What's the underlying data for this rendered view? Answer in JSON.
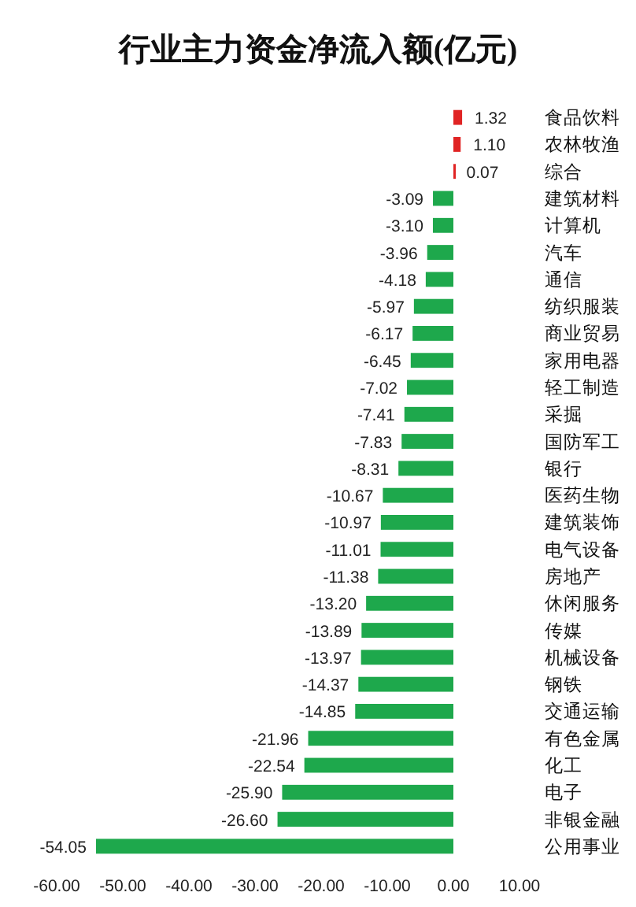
{
  "chart_data": {
    "type": "bar",
    "orientation": "horizontal",
    "title": "行业主力资金净流入额(亿元)",
    "categories": [
      "食品饮料",
      "农林牧渔",
      "综合",
      "建筑材料",
      "计算机",
      "汽车",
      "通信",
      "纺织服装",
      "商业贸易",
      "家用电器",
      "轻工制造",
      "采掘",
      "国防军工",
      "银行",
      "医药生物",
      "建筑装饰",
      "电气设备",
      "房地产",
      "休闲服务",
      "传媒",
      "机械设备",
      "钢铁",
      "交通运输",
      "有色金属",
      "化工",
      "电子",
      "非银金融",
      "公用事业"
    ],
    "values": [
      1.32,
      1.1,
      0.07,
      -3.09,
      -3.1,
      -3.96,
      -4.18,
      -5.97,
      -6.17,
      -6.45,
      -7.02,
      -7.41,
      -7.83,
      -8.31,
      -10.67,
      -10.97,
      -11.01,
      -11.38,
      -13.2,
      -13.89,
      -13.97,
      -14.37,
      -14.85,
      -21.96,
      -22.54,
      -25.9,
      -26.6,
      -54.05
    ],
    "value_labels": [
      "1.32",
      "1.10",
      "0.07",
      "-3.09",
      "-3.10",
      "-3.96",
      "-4.18",
      "-5.97",
      "-6.17",
      "-6.45",
      "-7.02",
      "-7.41",
      "-7.83",
      "-8.31",
      "-10.67",
      "-10.97",
      "-11.01",
      "-11.38",
      "-13.20",
      "-13.89",
      "-13.97",
      "-14.37",
      "-14.85",
      "-21.96",
      "-22.54",
      "-25.90",
      "-26.60",
      "-54.05"
    ],
    "colors": [
      "#e02424",
      "#e02424",
      "#e02424",
      "#1ea84c",
      "#1ea84c",
      "#1ea84c",
      "#1ea84c",
      "#1ea84c",
      "#1ea84c",
      "#1ea84c",
      "#1ea84c",
      "#1ea84c",
      "#1ea84c",
      "#1ea84c",
      "#1ea84c",
      "#1ea84c",
      "#1ea84c",
      "#1ea84c",
      "#1ea84c",
      "#1ea84c",
      "#1ea84c",
      "#1ea84c",
      "#1ea84c",
      "#1ea84c",
      "#1ea84c",
      "#1ea84c",
      "#1ea84c",
      "#1ea84c"
    ],
    "xlim": [
      -60,
      10
    ],
    "xticks": [
      {
        "value": -60,
        "label": "-60.00"
      },
      {
        "value": -50,
        "label": "-50.00"
      },
      {
        "value": -40,
        "label": "-40.00"
      },
      {
        "value": -30,
        "label": "-30.00"
      },
      {
        "value": -20,
        "label": "-20.00"
      },
      {
        "value": -10,
        "label": "-10.00"
      },
      {
        "value": 0,
        "label": "0.00"
      },
      {
        "value": 10,
        "label": "10.00"
      }
    ],
    "grid": false
  }
}
